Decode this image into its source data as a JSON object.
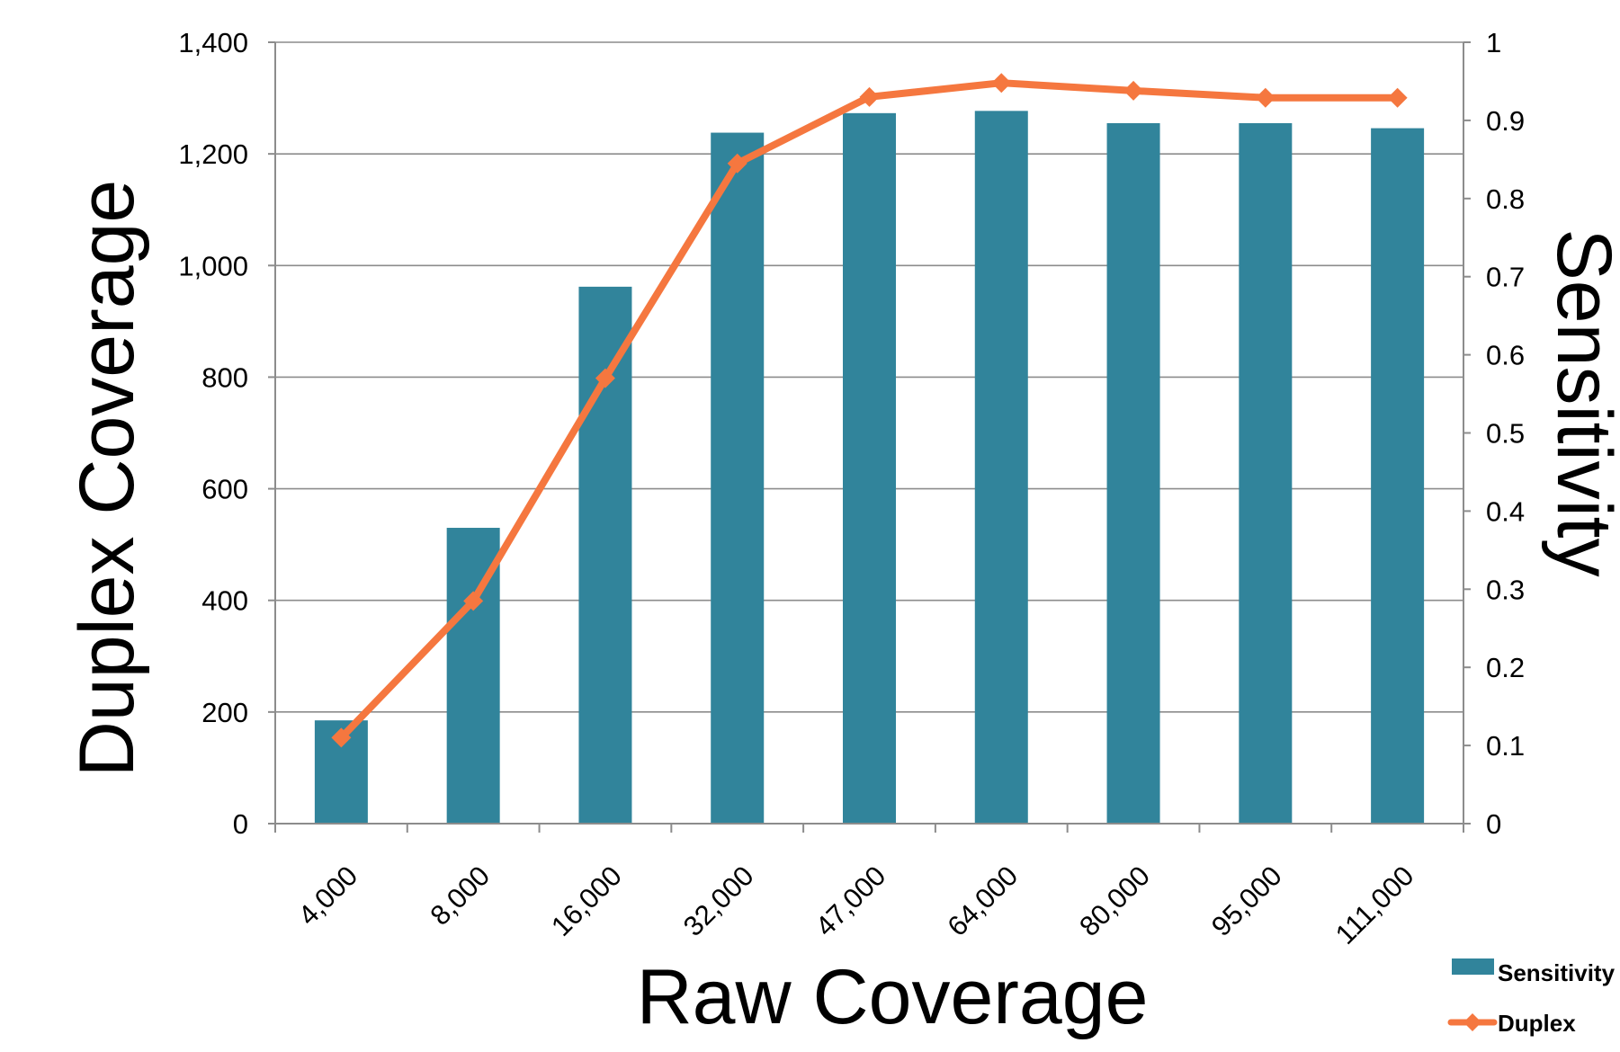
{
  "chart_data": {
    "type": "bar",
    "categories": [
      "4,000",
      "8,000",
      "16,000",
      "32,000",
      "47,000",
      "64,000",
      "80,000",
      "95,000",
      "111,000"
    ],
    "xlabel": "Raw Coverage",
    "ylabel_left": "Duplex Coverage",
    "ylabel_right": "Sensitivity",
    "y_left_ticks": [
      "0",
      "200",
      "400",
      "600",
      "800",
      "1,000",
      "1,200",
      "1,400"
    ],
    "y_right_ticks": [
      "0",
      "0.1",
      "0.2",
      "0.3",
      "0.4",
      "0.5",
      "0.6",
      "0.7",
      "0.8",
      "0.9",
      "1"
    ],
    "ylim_left": [
      0,
      1400
    ],
    "ylim_right": [
      0,
      1
    ],
    "grid": true,
    "legend_position": "bottom-right",
    "series": [
      {
        "name": "Sensitivity",
        "kind": "bar",
        "axis": "left",
        "color": "#31849b",
        "values": [
          185,
          530,
          962,
          1238,
          1273,
          1277,
          1255,
          1255,
          1246
        ]
      },
      {
        "name": "Duplex",
        "kind": "line",
        "axis": "right",
        "color": "#f5773f",
        "values": [
          0.11,
          0.285,
          0.57,
          0.845,
          0.93,
          0.948,
          0.938,
          0.929,
          0.929
        ]
      }
    ]
  }
}
